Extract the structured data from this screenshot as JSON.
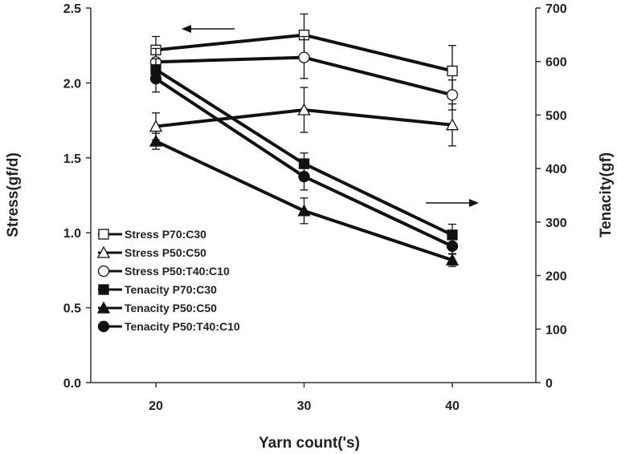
{
  "chart_data": {
    "type": "line",
    "xlabel": "Yarn count('s)",
    "ylabel": "Stress(gf/d)",
    "y2label": "Tenacity(gf)",
    "x": [
      20,
      30,
      40
    ],
    "xticks": [
      "20",
      "30",
      "40"
    ],
    "xlim": [
      15,
      45
    ],
    "ylim": [
      0,
      2.5
    ],
    "yticks": [
      "0.0",
      "0.5",
      "1.0",
      "1.5",
      "2.0",
      "2.5"
    ],
    "y2lim": [
      0,
      700
    ],
    "y2ticks": [
      "0",
      "100",
      "200",
      "300",
      "400",
      "500",
      "600",
      "700"
    ],
    "grid": false,
    "legend_placement": "lower-left",
    "series": [
      {
        "name": "Stress P70:C30",
        "axis": "left",
        "marker": "square-open",
        "values": [
          2.22,
          2.32,
          2.08
        ],
        "error": [
          0.09,
          0.14,
          0.17
        ]
      },
      {
        "name": "Stress P50:C50",
        "axis": "left",
        "marker": "triangle-open",
        "values": [
          1.71,
          1.82,
          1.72
        ],
        "error": [
          0.09,
          0.15,
          0.14
        ]
      },
      {
        "name": "Stress P50:T40:C10",
        "axis": "left",
        "marker": "circle-open",
        "values": [
          2.14,
          2.17,
          1.92
        ],
        "error": [
          0.09,
          0.14,
          0.1
        ]
      },
      {
        "name": "Tenacity P70:C30",
        "axis": "right",
        "marker": "square-filled",
        "values": [
          585,
          409,
          276
        ],
        "error": [
          20,
          20,
          20
        ]
      },
      {
        "name": "Tenacity P50:C50",
        "axis": "right",
        "marker": "triangle-filled",
        "values": [
          451,
          321,
          229
        ],
        "error": [
          15,
          24,
          12
        ]
      },
      {
        "name": "Tenacity P50:T40:C10",
        "axis": "right",
        "marker": "circle-filled",
        "values": [
          568,
          385,
          255
        ],
        "error": [
          25,
          25,
          15
        ]
      }
    ],
    "annotations": [
      "arrow-left (Stress axis)",
      "arrow-right (Tenacity axis)"
    ],
    "colors": {
      "line": "#111111",
      "marker_open_fill": "#ffffff"
    }
  }
}
